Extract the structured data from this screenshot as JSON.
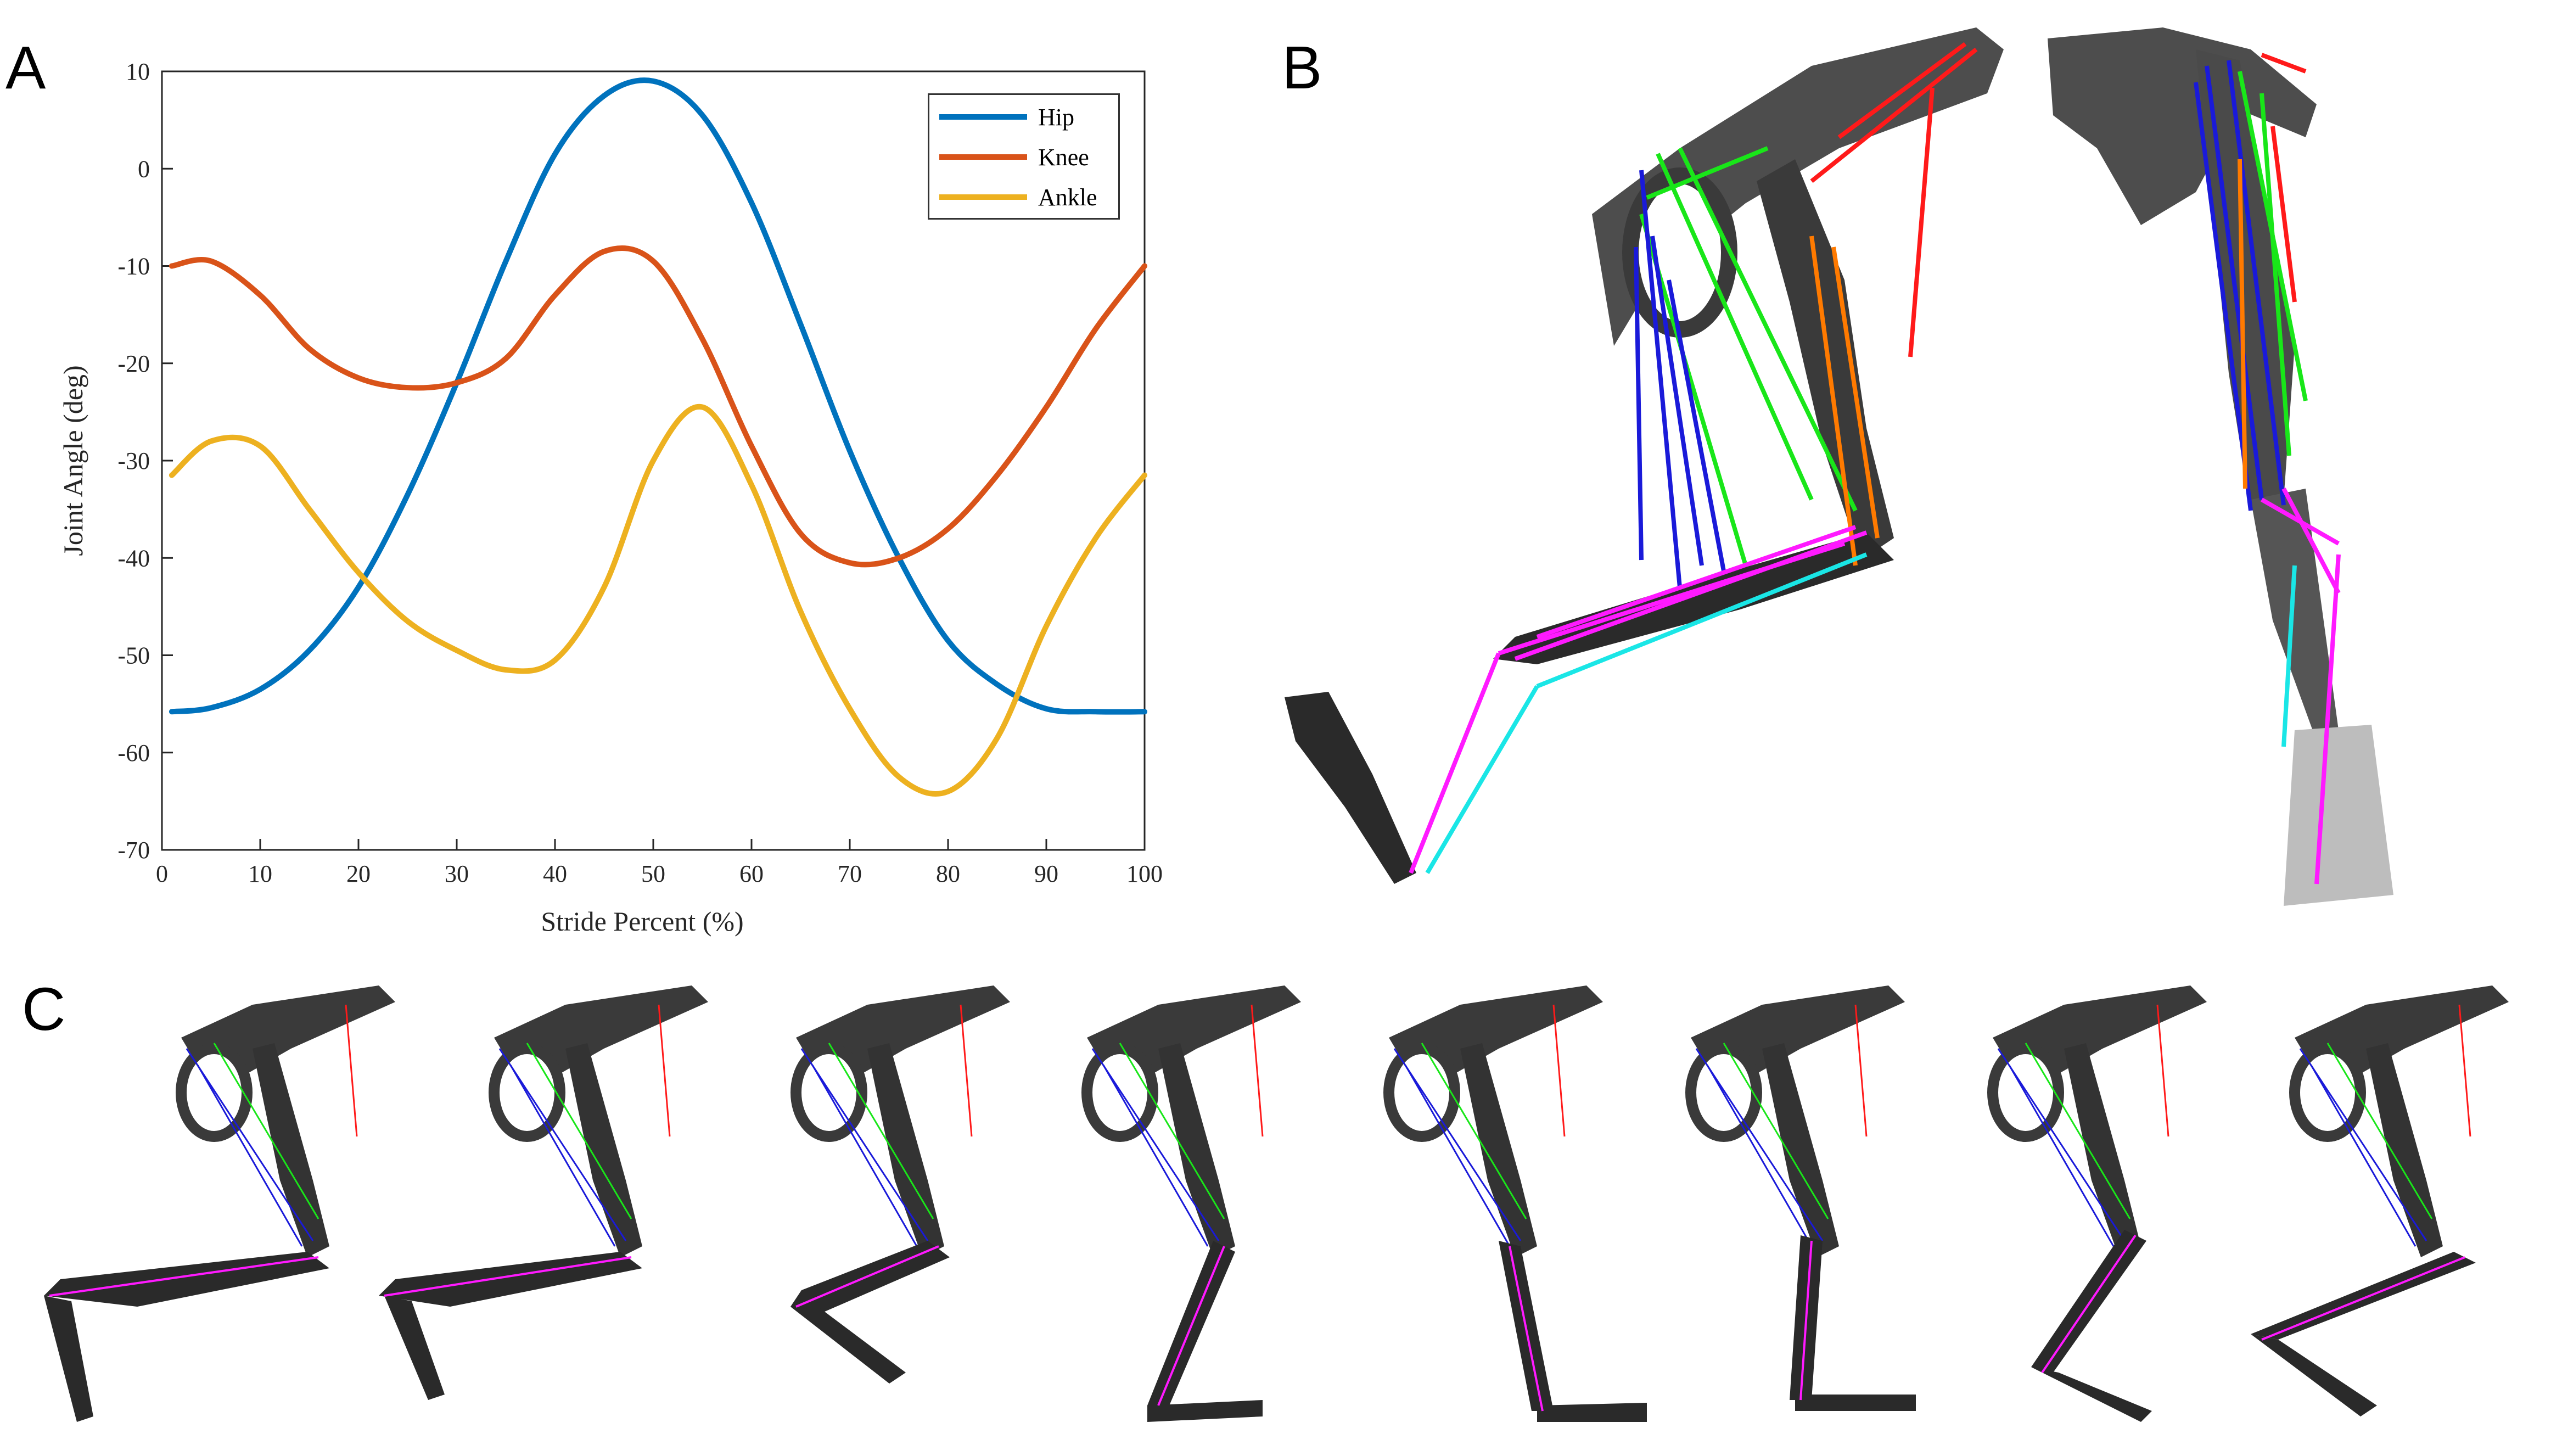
{
  "panels": {
    "a": "A",
    "b": "B",
    "c": "C"
  },
  "chart_data": {
    "type": "line",
    "title": "",
    "xlabel": "Stride Percent (%)",
    "ylabel": "Joint Angle (deg)",
    "xlim": [
      0,
      100
    ],
    "ylim": [
      -70,
      10
    ],
    "xticks": [
      0,
      10,
      20,
      30,
      40,
      50,
      60,
      70,
      80,
      90,
      100
    ],
    "yticks": [
      10,
      0,
      -10,
      -20,
      -30,
      -40,
      -50,
      -60,
      -70
    ],
    "grid": false,
    "legend_position": "top-right",
    "x": [
      1,
      5,
      10,
      15,
      20,
      25,
      30,
      35,
      40,
      45,
      50,
      55,
      60,
      65,
      70,
      75,
      80,
      85,
      90,
      95,
      100
    ],
    "series": [
      {
        "name": "Hip",
        "color": "#0072BD",
        "values": [
          -55.8,
          -55.4,
          -53.5,
          -49.5,
          -43,
          -33.5,
          -22,
          -9.5,
          1.5,
          7.5,
          9,
          5.5,
          -3.5,
          -16,
          -29,
          -40,
          -48.5,
          -53,
          -55.5,
          -55.8,
          -55.8
        ]
      },
      {
        "name": "Knee",
        "color": "#D95319",
        "values": [
          -10,
          -9.5,
          -13,
          -18.5,
          -21.5,
          -22.5,
          -22,
          -19.5,
          -13,
          -8.5,
          -9.5,
          -17.5,
          -28.5,
          -37.5,
          -40.5,
          -40,
          -37,
          -31.5,
          -24.5,
          -16.5,
          -10
        ]
      },
      {
        "name": "Ankle",
        "color": "#EDB120",
        "values": [
          -31.5,
          -28,
          -28.5,
          -35,
          -41.5,
          -46.5,
          -49.5,
          -51.5,
          -50.5,
          -43,
          -30,
          -24.5,
          -32.5,
          -45.5,
          -55.5,
          -62.5,
          -64,
          -58.5,
          -47,
          -38,
          -31.5
        ]
      }
    ]
  },
  "colors": {
    "bone": "#3a3a3a",
    "muscle_red": "#ff1a1a",
    "muscle_green": "#19e619",
    "muscle_blue": "#1a1ad9",
    "muscle_orange": "#ff7a00",
    "muscle_magenta": "#ff1aff",
    "muscle_cyan": "#1ae6e6"
  }
}
